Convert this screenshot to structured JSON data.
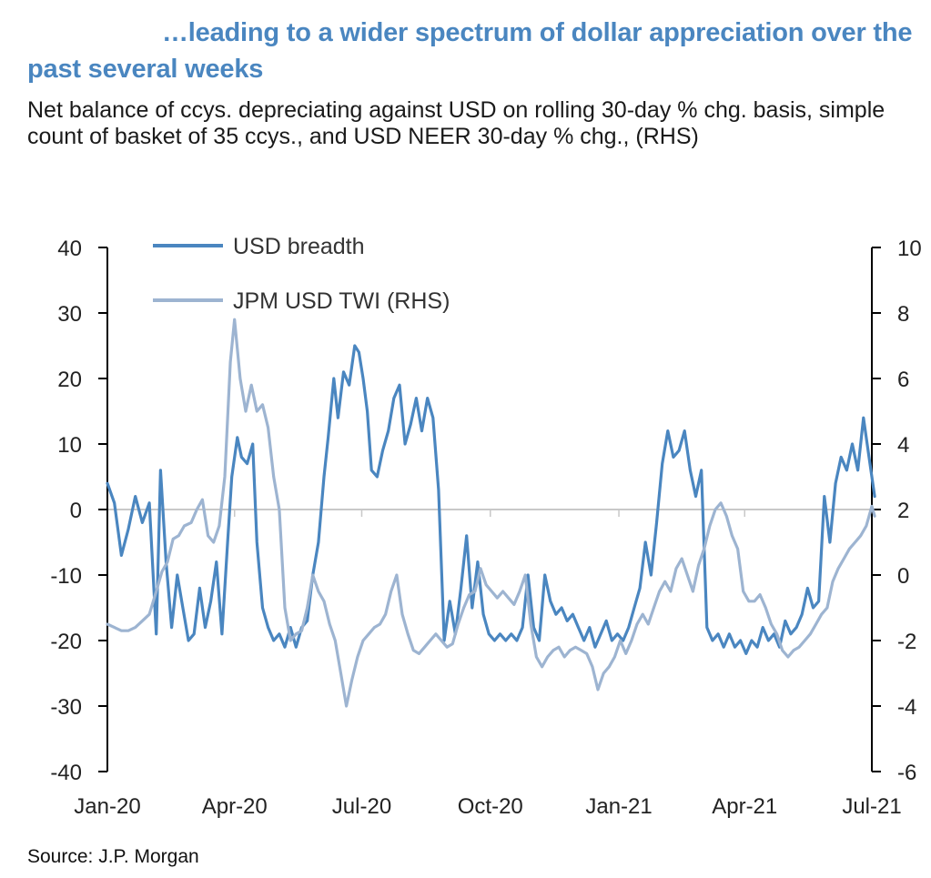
{
  "title": "…leading to a wider spectrum of dollar appreciation over the past several weeks",
  "subtitle": "Net balance of ccys. depreciating against USD on rolling 30-day % chg. basis, simple count of basket of 35 ccys., and USD NEER  30-day % chg., (RHS)",
  "source": "Source: J.P. Morgan",
  "colors": {
    "breadth": "#4a86c0",
    "twi": "#9db4d1",
    "zero_line": "#c8c8c8",
    "axis": "#000000"
  },
  "chart_data": {
    "type": "line",
    "x_type": "date",
    "x_tick_labels": [
      "Jan-20",
      "Apr-20",
      "Jul-20",
      "Oct-20",
      "Jan-21",
      "Apr-21",
      "Jul-21"
    ],
    "x_tick_dates": [
      "2020-01-01",
      "2020-04-01",
      "2020-07-01",
      "2020-10-01",
      "2021-01-01",
      "2021-04-01",
      "2021-07-01"
    ],
    "y_left": {
      "range": [
        -40,
        40
      ],
      "ticks": [
        40,
        30,
        20,
        10,
        0,
        -10,
        -20,
        -30,
        -40
      ]
    },
    "y_right": {
      "range": [
        -6,
        10
      ],
      "ticks": [
        10,
        8,
        6,
        4,
        2,
        0,
        -2,
        -4,
        -6
      ],
      "label": "RHS"
    },
    "legend_position": "top-left",
    "series": [
      {
        "name": "USD breadth",
        "axis": "left",
        "points": [
          [
            "2020-01-01",
            4
          ],
          [
            "2020-01-06",
            1
          ],
          [
            "2020-01-11",
            -7
          ],
          [
            "2020-01-16",
            -3
          ],
          [
            "2020-01-21",
            2
          ],
          [
            "2020-01-26",
            -2
          ],
          [
            "2020-01-31",
            1
          ],
          [
            "2020-02-05",
            -19
          ],
          [
            "2020-02-08",
            6
          ],
          [
            "2020-02-12",
            -8
          ],
          [
            "2020-02-16",
            -18
          ],
          [
            "2020-02-20",
            -10
          ],
          [
            "2020-02-24",
            -15
          ],
          [
            "2020-02-28",
            -20
          ],
          [
            "2020-03-03",
            -19
          ],
          [
            "2020-03-07",
            -12
          ],
          [
            "2020-03-11",
            -18
          ],
          [
            "2020-03-15",
            -14
          ],
          [
            "2020-03-19",
            -8
          ],
          [
            "2020-03-23",
            -19
          ],
          [
            "2020-03-27",
            -5
          ],
          [
            "2020-03-30",
            5
          ],
          [
            "2020-04-03",
            11
          ],
          [
            "2020-04-06",
            8
          ],
          [
            "2020-04-10",
            7
          ],
          [
            "2020-04-14",
            10
          ],
          [
            "2020-04-17",
            -5
          ],
          [
            "2020-04-21",
            -15
          ],
          [
            "2020-04-25",
            -18
          ],
          [
            "2020-04-29",
            -20
          ],
          [
            "2020-05-03",
            -19
          ],
          [
            "2020-05-07",
            -21
          ],
          [
            "2020-05-11",
            -18
          ],
          [
            "2020-05-15",
            -21
          ],
          [
            "2020-05-19",
            -18
          ],
          [
            "2020-05-23",
            -17
          ],
          [
            "2020-05-27",
            -10
          ],
          [
            "2020-05-31",
            -5
          ],
          [
            "2020-06-04",
            5
          ],
          [
            "2020-06-07",
            11
          ],
          [
            "2020-06-11",
            20
          ],
          [
            "2020-06-14",
            14
          ],
          [
            "2020-06-18",
            21
          ],
          [
            "2020-06-22",
            19
          ],
          [
            "2020-06-26",
            25
          ],
          [
            "2020-06-29",
            24
          ],
          [
            "2020-07-02",
            20
          ],
          [
            "2020-07-05",
            15
          ],
          [
            "2020-07-08",
            6
          ],
          [
            "2020-07-12",
            5
          ],
          [
            "2020-07-16",
            9
          ],
          [
            "2020-07-20",
            12
          ],
          [
            "2020-07-24",
            17
          ],
          [
            "2020-07-28",
            19
          ],
          [
            "2020-08-01",
            10
          ],
          [
            "2020-08-05",
            13
          ],
          [
            "2020-08-09",
            17
          ],
          [
            "2020-08-13",
            12
          ],
          [
            "2020-08-17",
            17
          ],
          [
            "2020-08-21",
            14
          ],
          [
            "2020-08-25",
            3
          ],
          [
            "2020-08-29",
            -20
          ],
          [
            "2020-09-02",
            -14
          ],
          [
            "2020-09-06",
            -19
          ],
          [
            "2020-09-10",
            -12
          ],
          [
            "2020-09-14",
            -4
          ],
          [
            "2020-09-18",
            -15
          ],
          [
            "2020-09-22",
            -8
          ],
          [
            "2020-09-26",
            -16
          ],
          [
            "2020-09-30",
            -19
          ],
          [
            "2020-10-04",
            -20
          ],
          [
            "2020-10-08",
            -19
          ],
          [
            "2020-10-12",
            -20
          ],
          [
            "2020-10-16",
            -19
          ],
          [
            "2020-10-20",
            -20
          ],
          [
            "2020-10-24",
            -18
          ],
          [
            "2020-10-28",
            -10
          ],
          [
            "2020-11-01",
            -18
          ],
          [
            "2020-11-05",
            -20
          ],
          [
            "2020-11-09",
            -10
          ],
          [
            "2020-11-13",
            -14
          ],
          [
            "2020-11-17",
            -16
          ],
          [
            "2020-11-21",
            -15
          ],
          [
            "2020-11-25",
            -17
          ],
          [
            "2020-11-29",
            -16
          ],
          [
            "2020-12-03",
            -18
          ],
          [
            "2020-12-07",
            -20
          ],
          [
            "2020-12-11",
            -18
          ],
          [
            "2020-12-15",
            -21
          ],
          [
            "2020-12-19",
            -19
          ],
          [
            "2020-12-23",
            -17
          ],
          [
            "2020-12-27",
            -20
          ],
          [
            "2020-12-31",
            -19
          ],
          [
            "2021-01-04",
            -20
          ],
          [
            "2021-01-08",
            -18
          ],
          [
            "2021-01-12",
            -15
          ],
          [
            "2021-01-16",
            -12
          ],
          [
            "2021-01-20",
            -5
          ],
          [
            "2021-01-24",
            -10
          ],
          [
            "2021-01-28",
            -2
          ],
          [
            "2021-02-01",
            7
          ],
          [
            "2021-02-05",
            12
          ],
          [
            "2021-02-09",
            8
          ],
          [
            "2021-02-13",
            9
          ],
          [
            "2021-02-17",
            12
          ],
          [
            "2021-02-21",
            6
          ],
          [
            "2021-02-25",
            2
          ],
          [
            "2021-03-01",
            6
          ],
          [
            "2021-03-05",
            -18
          ],
          [
            "2021-03-09",
            -20
          ],
          [
            "2021-03-13",
            -19
          ],
          [
            "2021-03-17",
            -21
          ],
          [
            "2021-03-21",
            -19
          ],
          [
            "2021-03-25",
            -21
          ],
          [
            "2021-03-29",
            -20
          ],
          [
            "2021-04-02",
            -22
          ],
          [
            "2021-04-06",
            -20
          ],
          [
            "2021-04-10",
            -21
          ],
          [
            "2021-04-14",
            -18
          ],
          [
            "2021-04-18",
            -20
          ],
          [
            "2021-04-22",
            -19
          ],
          [
            "2021-04-26",
            -21
          ],
          [
            "2021-04-30",
            -17
          ],
          [
            "2021-05-04",
            -19
          ],
          [
            "2021-05-08",
            -18
          ],
          [
            "2021-05-12",
            -16
          ],
          [
            "2021-05-16",
            -12
          ],
          [
            "2021-05-20",
            -15
          ],
          [
            "2021-05-24",
            -14
          ],
          [
            "2021-05-28",
            2
          ],
          [
            "2021-06-01",
            -5
          ],
          [
            "2021-06-05",
            4
          ],
          [
            "2021-06-09",
            8
          ],
          [
            "2021-06-13",
            6
          ],
          [
            "2021-06-17",
            10
          ],
          [
            "2021-06-21",
            6
          ],
          [
            "2021-06-25",
            14
          ],
          [
            "2021-06-29",
            8
          ],
          [
            "2021-07-03",
            2
          ]
        ]
      },
      {
        "name": "JPM USD TWI (RHS)",
        "axis": "right",
        "points": [
          [
            "2020-01-01",
            -1.5
          ],
          [
            "2020-01-06",
            -1.6
          ],
          [
            "2020-01-11",
            -1.7
          ],
          [
            "2020-01-16",
            -1.7
          ],
          [
            "2020-01-21",
            -1.6
          ],
          [
            "2020-01-26",
            -1.4
          ],
          [
            "2020-01-31",
            -1.2
          ],
          [
            "2020-02-05",
            -0.5
          ],
          [
            "2020-02-09",
            0.1
          ],
          [
            "2020-02-13",
            0.4
          ],
          [
            "2020-02-17",
            1.1
          ],
          [
            "2020-02-21",
            1.2
          ],
          [
            "2020-02-25",
            1.5
          ],
          [
            "2020-03-01",
            1.6
          ],
          [
            "2020-03-05",
            2.0
          ],
          [
            "2020-03-09",
            2.3
          ],
          [
            "2020-03-13",
            1.2
          ],
          [
            "2020-03-17",
            1.0
          ],
          [
            "2020-03-21",
            1.5
          ],
          [
            "2020-03-25",
            3.0
          ],
          [
            "2020-03-29",
            6.5
          ],
          [
            "2020-04-01",
            7.8
          ],
          [
            "2020-04-05",
            6.0
          ],
          [
            "2020-04-09",
            5.0
          ],
          [
            "2020-04-13",
            5.8
          ],
          [
            "2020-04-17",
            5.0
          ],
          [
            "2020-04-21",
            5.2
          ],
          [
            "2020-04-25",
            4.5
          ],
          [
            "2020-04-29",
            3.0
          ],
          [
            "2020-05-03",
            2.0
          ],
          [
            "2020-05-07",
            -1.0
          ],
          [
            "2020-05-11",
            -2.0
          ],
          [
            "2020-05-15",
            -1.8
          ],
          [
            "2020-05-19",
            -1.7
          ],
          [
            "2020-05-23",
            -1.0
          ],
          [
            "2020-05-27",
            0.0
          ],
          [
            "2020-05-31",
            -0.5
          ],
          [
            "2020-06-04",
            -0.8
          ],
          [
            "2020-06-08",
            -1.5
          ],
          [
            "2020-06-12",
            -2.0
          ],
          [
            "2020-06-16",
            -3.0
          ],
          [
            "2020-06-20",
            -4.0
          ],
          [
            "2020-06-24",
            -3.2
          ],
          [
            "2020-06-28",
            -2.5
          ],
          [
            "2020-07-02",
            -2.0
          ],
          [
            "2020-07-06",
            -1.8
          ],
          [
            "2020-07-10",
            -1.6
          ],
          [
            "2020-07-14",
            -1.5
          ],
          [
            "2020-07-18",
            -1.2
          ],
          [
            "2020-07-22",
            -0.5
          ],
          [
            "2020-07-26",
            0.0
          ],
          [
            "2020-07-30",
            -1.2
          ],
          [
            "2020-08-03",
            -1.8
          ],
          [
            "2020-08-07",
            -2.3
          ],
          [
            "2020-08-11",
            -2.4
          ],
          [
            "2020-08-15",
            -2.2
          ],
          [
            "2020-08-19",
            -2.0
          ],
          [
            "2020-08-23",
            -1.8
          ],
          [
            "2020-08-27",
            -2.0
          ],
          [
            "2020-08-31",
            -2.2
          ],
          [
            "2020-09-04",
            -2.1
          ],
          [
            "2020-09-08",
            -1.5
          ],
          [
            "2020-09-12",
            -1.0
          ],
          [
            "2020-09-16",
            -0.6
          ],
          [
            "2020-09-20",
            -0.5
          ],
          [
            "2020-09-24",
            0.2
          ],
          [
            "2020-09-28",
            -0.3
          ],
          [
            "2020-10-02",
            -0.5
          ],
          [
            "2020-10-06",
            -0.7
          ],
          [
            "2020-10-10",
            -0.5
          ],
          [
            "2020-10-14",
            -0.7
          ],
          [
            "2020-10-18",
            -0.9
          ],
          [
            "2020-10-22",
            -0.5
          ],
          [
            "2020-10-26",
            0.0
          ],
          [
            "2020-10-30",
            -1.5
          ],
          [
            "2020-11-03",
            -2.5
          ],
          [
            "2020-11-07",
            -2.8
          ],
          [
            "2020-11-11",
            -2.5
          ],
          [
            "2020-11-15",
            -2.3
          ],
          [
            "2020-11-19",
            -2.2
          ],
          [
            "2020-11-23",
            -2.5
          ],
          [
            "2020-11-27",
            -2.3
          ],
          [
            "2020-12-01",
            -2.2
          ],
          [
            "2020-12-05",
            -2.3
          ],
          [
            "2020-12-09",
            -2.4
          ],
          [
            "2020-12-13",
            -2.8
          ],
          [
            "2020-12-17",
            -3.5
          ],
          [
            "2020-12-21",
            -3.0
          ],
          [
            "2020-12-25",
            -2.8
          ],
          [
            "2020-12-29",
            -2.5
          ],
          [
            "2021-01-02",
            -2.0
          ],
          [
            "2021-01-06",
            -2.4
          ],
          [
            "2021-01-10",
            -2.0
          ],
          [
            "2021-01-14",
            -1.5
          ],
          [
            "2021-01-18",
            -1.2
          ],
          [
            "2021-01-22",
            -1.5
          ],
          [
            "2021-01-26",
            -1.0
          ],
          [
            "2021-01-30",
            -0.5
          ],
          [
            "2021-02-03",
            -0.2
          ],
          [
            "2021-02-07",
            -0.5
          ],
          [
            "2021-02-11",
            0.2
          ],
          [
            "2021-02-15",
            0.5
          ],
          [
            "2021-02-19",
            0.0
          ],
          [
            "2021-02-23",
            -0.5
          ],
          [
            "2021-02-27",
            0.3
          ],
          [
            "2021-03-03",
            0.8
          ],
          [
            "2021-03-07",
            1.5
          ],
          [
            "2021-03-11",
            2.0
          ],
          [
            "2021-03-15",
            2.2
          ],
          [
            "2021-03-19",
            1.8
          ],
          [
            "2021-03-23",
            1.2
          ],
          [
            "2021-03-27",
            0.8
          ],
          [
            "2021-03-31",
            -0.5
          ],
          [
            "2021-04-04",
            -0.8
          ],
          [
            "2021-04-08",
            -0.8
          ],
          [
            "2021-04-12",
            -0.6
          ],
          [
            "2021-04-16",
            -1.0
          ],
          [
            "2021-04-20",
            -1.5
          ],
          [
            "2021-04-24",
            -1.8
          ],
          [
            "2021-04-28",
            -2.3
          ],
          [
            "2021-05-02",
            -2.5
          ],
          [
            "2021-05-06",
            -2.3
          ],
          [
            "2021-05-10",
            -2.2
          ],
          [
            "2021-05-14",
            -2.0
          ],
          [
            "2021-05-18",
            -1.8
          ],
          [
            "2021-05-22",
            -1.5
          ],
          [
            "2021-05-26",
            -1.2
          ],
          [
            "2021-05-30",
            -1.0
          ],
          [
            "2021-06-03",
            -0.2
          ],
          [
            "2021-06-07",
            0.2
          ],
          [
            "2021-06-11",
            0.5
          ],
          [
            "2021-06-15",
            0.8
          ],
          [
            "2021-06-19",
            1.0
          ],
          [
            "2021-06-23",
            1.2
          ],
          [
            "2021-06-27",
            1.5
          ],
          [
            "2021-07-01",
            2.1
          ],
          [
            "2021-07-03",
            1.8
          ]
        ]
      }
    ]
  }
}
